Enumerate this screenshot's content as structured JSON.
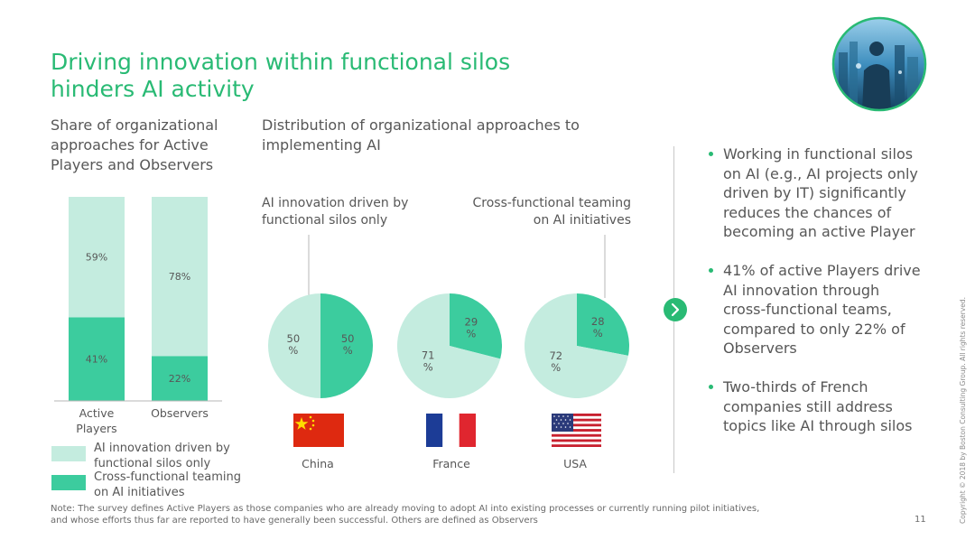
{
  "title": {
    "line1": "Driving innovation within functional silos",
    "line2": "hinders AI activity"
  },
  "left": {
    "heading_lines": [
      "Share of organizational",
      "approaches for Active",
      "Players and Observers"
    ]
  },
  "middle": {
    "heading_lines": [
      "Distribution of organizational approaches to",
      "implementing AI"
    ],
    "label_silos_lines": [
      "AI innovation driven by",
      "functional silos only"
    ],
    "label_cross_lines": [
      "Cross-functional teaming",
      "on AI initiatives"
    ]
  },
  "legend": {
    "silos_lines": [
      "AI innovation driven by",
      "functional silos only"
    ],
    "cross_lines": [
      "Cross-functional teaming",
      "on AI initiatives"
    ]
  },
  "colors": {
    "light": "#c4ecdf",
    "dark": "#3ccc9e",
    "accent": "#29ba74",
    "axis": "#b7b7b7"
  },
  "bullets": [
    "Working in functional silos on AI (e.g., AI projects only driven by IT) significantly reduces the chances of becoming an active Player",
    "41% of active Players drive AI innovation through cross-functional teams, compared to only 22% of Observers",
    "Two-thirds of French companies still address topics like AI through silos"
  ],
  "note": {
    "line1": "Note: The survey defines Active Players as those companies who are already moving to adopt AI into existing processes or currently running pilot initiatives,",
    "line2": "and whose efforts thus far are reported to have generally been successful. Others are defined as Observers"
  },
  "page_number": "11",
  "copyright": "Copyright © 2018 by Boston Consulting Group. All rights reserved.",
  "icons": {
    "next": "chevron-right-icon",
    "photo": "city-skyline-photo"
  },
  "chart_data": [
    {
      "type": "bar",
      "stacked": true,
      "categories": [
        "Active Players",
        "Observers"
      ],
      "category_label_lines": [
        [
          "Active",
          "Players"
        ],
        [
          "Observers"
        ]
      ],
      "series": [
        {
          "name": "Cross-functional teaming on AI initiatives",
          "values": [
            41,
            22
          ],
          "labels": [
            "41%",
            "22%"
          ]
        },
        {
          "name": "AI innovation driven by functional silos only",
          "values": [
            59,
            78
          ],
          "labels": [
            "59%",
            "78%"
          ]
        }
      ],
      "ylim": [
        0,
        100
      ]
    },
    {
      "type": "pie",
      "pies": [
        {
          "country": "China",
          "silos": 50,
          "cross": 50,
          "silos_label": [
            "50",
            "%"
          ],
          "cross_label": [
            "50",
            "%"
          ]
        },
        {
          "country": "France",
          "silos": 71,
          "cross": 29,
          "silos_label": [
            "71",
            "%"
          ],
          "cross_label": [
            "29",
            "%"
          ]
        },
        {
          "country": "USA",
          "silos": 72,
          "cross": 28,
          "silos_label": [
            "72",
            "%"
          ],
          "cross_label": [
            "28",
            "%"
          ]
        }
      ]
    }
  ]
}
